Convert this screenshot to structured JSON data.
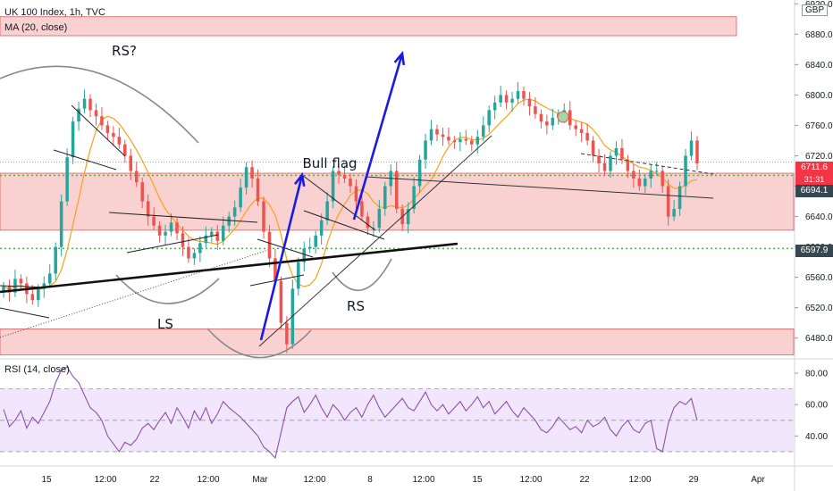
{
  "header": {
    "symbol_line": "UK 100 Index, 1h, TVC",
    "ma_label": "MA (20, close)",
    "rsi_label": "RSI (14, close)",
    "currency": "GBP"
  },
  "annotations": {
    "rs_question": "RS?",
    "bull_flag": "Bull flag",
    "ls": "LS",
    "rs": "RS"
  },
  "price_badges": {
    "last_price": "6711.6",
    "countdown": "31:31",
    "level_upper": "6694.1",
    "level_lower": "6597.9"
  },
  "colors": {
    "up_candle": "#26a69a",
    "down_candle": "#ef5350",
    "ma": "#f7a21b",
    "rsi": "#8e4fae",
    "rsi_band": "#f1e6fb",
    "zone_fill": "#f8c9c9",
    "zone_border": "#e05a5a",
    "level_dotted": "#4caf50",
    "arrow": "#1a1ae6"
  },
  "chart_data": [
    {
      "type": "candlestick",
      "title": "UK 100 Index, 1h, TVC",
      "y_axis": {
        "ticks": [
          "6920.0",
          "6880.0",
          "6840.0",
          "6800.0",
          "6760.0",
          "6720.0",
          "6680.0",
          "6640.0",
          "6600.0",
          "6560.0",
          "6520.0",
          "6480.0"
        ],
        "range": [
          6455,
          6925
        ]
      },
      "x_axis": {
        "ticks": [
          "15",
          "12:00",
          "22",
          "12:00",
          "Mar",
          "12:00",
          "8",
          "12:00",
          "15",
          "12:00",
          "22",
          "12:00",
          "29",
          "Apr"
        ]
      },
      "zones": [
        {
          "from": 6878,
          "to": 6903
        },
        {
          "from": 6622,
          "to": 6697
        },
        {
          "from": 6458,
          "to": 6492
        }
      ],
      "levels": [
        6694.1,
        6597.9
      ],
      "last_price": 6711.6,
      "series": [
        {
          "name": "Price",
          "kind": "candles",
          "close": [
            6548,
            6540,
            6558,
            6552,
            6538,
            6530,
            6545,
            6552,
            6565,
            6600,
            6660,
            6718,
            6765,
            6782,
            6795,
            6780,
            6772,
            6760,
            6750,
            6745,
            6735,
            6720,
            6700,
            6685,
            6660,
            6640,
            6628,
            6615,
            6620,
            6632,
            6618,
            6600,
            6585,
            6592,
            6605,
            6615,
            6620,
            6608,
            6628,
            6640,
            6652,
            6678,
            6705,
            6690,
            6660,
            6620,
            6585,
            6555,
            6500,
            6472,
            6545,
            6580,
            6598,
            6600,
            6615,
            6635,
            6660,
            6700,
            6695,
            6690,
            6680,
            6660,
            6640,
            6625,
            6625,
            6650,
            6680,
            6700,
            6650,
            6630,
            6650,
            6680,
            6715,
            6740,
            6755,
            6748,
            6745,
            6740,
            6738,
            6742,
            6740,
            6735,
            6745,
            6760,
            6780,
            6790,
            6800,
            6790,
            6795,
            6805,
            6795,
            6785,
            6775,
            6765,
            6760,
            6770,
            6775,
            6780,
            6760,
            6755,
            6750,
            6740,
            6720,
            6710,
            6700,
            6720,
            6730,
            6715,
            6700,
            6690,
            6680,
            6690,
            6700,
            6700,
            6680,
            6640,
            6650,
            6680,
            6720,
            6740,
            6710
          ]
        }
      ]
    },
    {
      "type": "line",
      "title": "RSI (14, close)",
      "y_axis": {
        "ticks": [
          "80.00",
          "60.00",
          "40.00"
        ],
        "range": [
          22,
          88
        ]
      },
      "band": [
        30,
        70
      ],
      "series": [
        {
          "name": "RSI",
          "values": [
            57,
            46,
            50,
            56,
            45,
            52,
            48,
            55,
            62,
            74,
            82,
            84,
            78,
            74,
            66,
            58,
            55,
            50,
            40,
            35,
            30,
            36,
            34,
            38,
            45,
            48,
            44,
            50,
            55,
            48,
            58,
            52,
            45,
            56,
            50,
            58,
            48,
            54,
            62,
            58,
            55,
            52,
            48,
            44,
            40,
            33,
            30,
            26,
            42,
            58,
            62,
            65,
            55,
            60,
            66,
            58,
            52,
            60,
            56,
            50,
            55,
            58,
            52,
            60,
            66,
            58,
            52,
            56,
            60,
            64,
            58,
            56,
            62,
            68,
            60,
            56,
            60,
            54,
            58,
            62,
            56,
            60,
            65,
            58,
            62,
            54,
            58,
            62,
            56,
            52,
            58,
            54,
            50,
            44,
            42,
            46,
            52,
            48,
            44,
            46,
            42,
            50,
            46,
            48,
            52,
            44,
            40,
            46,
            50,
            44,
            42,
            48,
            50,
            32,
            30,
            48,
            58,
            62,
            60,
            64,
            50
          ]
        }
      ]
    }
  ]
}
